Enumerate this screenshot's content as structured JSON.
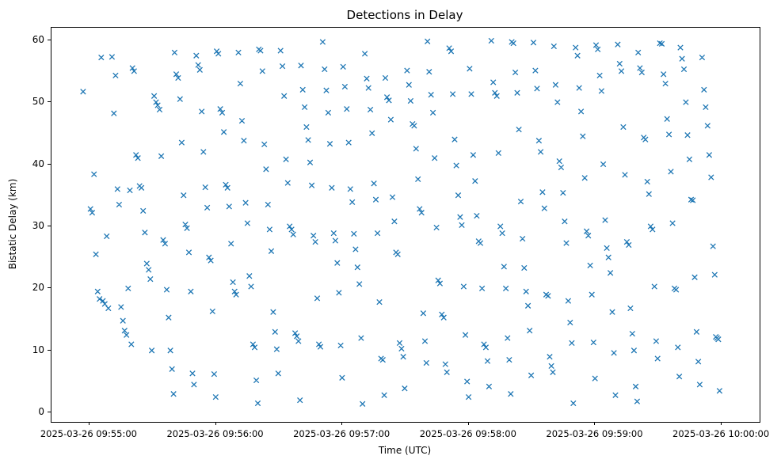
{
  "chart_data": {
    "type": "scatter",
    "title": "Detections in Delay",
    "xlabel": "Time (UTC)",
    "ylabel": "Bistatic Delay (km)",
    "marker": "x",
    "marker_color": "#1f77b4",
    "grid": false,
    "legend": "none",
    "x_axis": {
      "tick_labels": [
        "2025-03-26 09:55:00",
        "2025-03-26 09:56:00",
        "2025-03-26 09:57:00",
        "2025-03-26 09:58:00",
        "2025-03-26 09:59:00",
        "2025-03-26 10:00:00"
      ],
      "tick_seconds": [
        0,
        60,
        120,
        180,
        240,
        300
      ],
      "range_seconds": [
        -18,
        318
      ],
      "unit": "seconds after 2025-03-26 09:55:00 UTC"
    },
    "y_axis": {
      "ticks": [
        0,
        10,
        20,
        30,
        40,
        50,
        60
      ],
      "range": [
        -1.5,
        62
      ]
    },
    "points": [
      [
        -3,
        51.7
      ],
      [
        0.5,
        32.8
      ],
      [
        1.3,
        32.2
      ],
      [
        2.2,
        38.4
      ],
      [
        3.1,
        25.5
      ],
      [
        3.9,
        19.5
      ],
      [
        4.8,
        18.3
      ],
      [
        5.6,
        57.2
      ],
      [
        6.4,
        18.0
      ],
      [
        7.3,
        17.5
      ],
      [
        8.2,
        28.4
      ],
      [
        9.0,
        16.8
      ],
      [
        10.7,
        57.3
      ],
      [
        11.6,
        48.2
      ],
      [
        12.4,
        54.3
      ],
      [
        13.3,
        36.0
      ],
      [
        14.1,
        33.5
      ],
      [
        15.0,
        17.0
      ],
      [
        15.9,
        14.8
      ],
      [
        16.7,
        13.2
      ],
      [
        17.6,
        12.5
      ],
      [
        18.4,
        20.0
      ],
      [
        19.2,
        35.8
      ],
      [
        19.9,
        11.0
      ],
      [
        20.4,
        55.5
      ],
      [
        21.2,
        55.0
      ],
      [
        22.1,
        41.5
      ],
      [
        23.0,
        41.0
      ],
      [
        23.8,
        36.5
      ],
      [
        24.7,
        36.2
      ],
      [
        25.5,
        32.5
      ],
      [
        26.3,
        29.0
      ],
      [
        27.2,
        24.0
      ],
      [
        28.1,
        23.0
      ],
      [
        28.9,
        21.5
      ],
      [
        29.6,
        10.0
      ],
      [
        30.7,
        51.0
      ],
      [
        31.6,
        50.0
      ],
      [
        32.4,
        49.5
      ],
      [
        33.3,
        48.8
      ],
      [
        34.1,
        41.3
      ],
      [
        35.0,
        27.8
      ],
      [
        35.9,
        27.2
      ],
      [
        36.7,
        19.8
      ],
      [
        37.6,
        15.3
      ],
      [
        38.4,
        10.0
      ],
      [
        39.2,
        7.0
      ],
      [
        39.9,
        3.0
      ],
      [
        40.4,
        58.0
      ],
      [
        41.2,
        54.5
      ],
      [
        42.1,
        53.9
      ],
      [
        43.0,
        50.5
      ],
      [
        43.8,
        43.5
      ],
      [
        44.7,
        35.0
      ],
      [
        45.5,
        30.3
      ],
      [
        46.3,
        29.7
      ],
      [
        47.2,
        25.8
      ],
      [
        48.1,
        19.5
      ],
      [
        48.9,
        6.3
      ],
      [
        49.6,
        4.5
      ],
      [
        50.7,
        57.5
      ],
      [
        51.6,
        56.0
      ],
      [
        52.4,
        55.2
      ],
      [
        53.3,
        48.5
      ],
      [
        54.1,
        42.0
      ],
      [
        55.0,
        36.3
      ],
      [
        55.9,
        33.0
      ],
      [
        56.7,
        25.0
      ],
      [
        57.6,
        24.5
      ],
      [
        58.4,
        16.3
      ],
      [
        59.2,
        6.2
      ],
      [
        59.9,
        2.5
      ],
      [
        60.4,
        58.2
      ],
      [
        61.2,
        57.8
      ],
      [
        62.1,
        48.9
      ],
      [
        63.0,
        48.3
      ],
      [
        63.8,
        45.2
      ],
      [
        64.7,
        36.7
      ],
      [
        65.5,
        36.2
      ],
      [
        66.3,
        33.2
      ],
      [
        67.2,
        27.2
      ],
      [
        68.1,
        21.0
      ],
      [
        68.9,
        19.5
      ],
      [
        69.6,
        19.0
      ],
      [
        70.7,
        58.0
      ],
      [
        71.6,
        53.0
      ],
      [
        72.4,
        47.0
      ],
      [
        73.3,
        43.8
      ],
      [
        74.1,
        33.8
      ],
      [
        75.0,
        30.5
      ],
      [
        75.9,
        22.0
      ],
      [
        76.7,
        20.3
      ],
      [
        77.6,
        11.0
      ],
      [
        78.4,
        10.5
      ],
      [
        79.2,
        5.2
      ],
      [
        79.9,
        1.5
      ],
      [
        80.4,
        58.5
      ],
      [
        81.2,
        58.3
      ],
      [
        82.1,
        55.0
      ],
      [
        83.0,
        43.2
      ],
      [
        83.8,
        39.2
      ],
      [
        84.7,
        33.5
      ],
      [
        85.5,
        29.5
      ],
      [
        86.3,
        26.0
      ],
      [
        87.2,
        16.2
      ],
      [
        88.1,
        13.0
      ],
      [
        88.9,
        10.2
      ],
      [
        89.6,
        6.3
      ],
      [
        90.7,
        58.3
      ],
      [
        91.6,
        55.8
      ],
      [
        92.4,
        51.0
      ],
      [
        93.3,
        40.8
      ],
      [
        94.1,
        37.0
      ],
      [
        95.0,
        30.0
      ],
      [
        95.9,
        29.5
      ],
      [
        96.7,
        28.7
      ],
      [
        97.6,
        12.8
      ],
      [
        98.4,
        12.3
      ],
      [
        99.2,
        11.5
      ],
      [
        99.9,
        2.0
      ],
      [
        100.4,
        55.9
      ],
      [
        101.2,
        52.0
      ],
      [
        102.1,
        49.2
      ],
      [
        103.0,
        46.0
      ],
      [
        103.8,
        43.9
      ],
      [
        104.7,
        40.3
      ],
      [
        105.5,
        36.6
      ],
      [
        106.3,
        28.5
      ],
      [
        107.2,
        27.5
      ],
      [
        108.1,
        18.4
      ],
      [
        108.9,
        11.0
      ],
      [
        109.6,
        10.6
      ],
      [
        110.7,
        59.7
      ],
      [
        111.6,
        55.3
      ],
      [
        112.4,
        51.9
      ],
      [
        113.3,
        48.3
      ],
      [
        114.1,
        43.3
      ],
      [
        115.0,
        36.2
      ],
      [
        115.9,
        28.9
      ],
      [
        116.7,
        27.7
      ],
      [
        117.6,
        24.1
      ],
      [
        118.4,
        19.3
      ],
      [
        119.2,
        10.8
      ],
      [
        119.9,
        5.6
      ],
      [
        120.4,
        55.7
      ],
      [
        121.2,
        52.5
      ],
      [
        122.1,
        48.9
      ],
      [
        123.0,
        43.5
      ],
      [
        123.8,
        36.0
      ],
      [
        124.7,
        33.9
      ],
      [
        125.5,
        28.8
      ],
      [
        126.3,
        26.3
      ],
      [
        127.2,
        23.4
      ],
      [
        128.1,
        20.7
      ],
      [
        128.9,
        12.0
      ],
      [
        129.6,
        1.4
      ],
      [
        130.7,
        57.8
      ],
      [
        131.6,
        53.8
      ],
      [
        132.4,
        52.3
      ],
      [
        133.3,
        48.8
      ],
      [
        134.1,
        45.0
      ],
      [
        135.0,
        36.9
      ],
      [
        135.9,
        34.3
      ],
      [
        136.7,
        28.9
      ],
      [
        137.6,
        17.8
      ],
      [
        138.4,
        8.7
      ],
      [
        139.2,
        8.5
      ],
      [
        139.9,
        2.8
      ],
      [
        140.4,
        53.9
      ],
      [
        141.2,
        50.8
      ],
      [
        142.1,
        50.3
      ],
      [
        143.0,
        47.2
      ],
      [
        143.8,
        34.7
      ],
      [
        144.7,
        30.8
      ],
      [
        145.5,
        25.8
      ],
      [
        146.3,
        25.5
      ],
      [
        147.2,
        11.2
      ],
      [
        148.1,
        10.3
      ],
      [
        148.9,
        9.0
      ],
      [
        149.6,
        3.9
      ],
      [
        150.7,
        55.1
      ],
      [
        151.6,
        52.8
      ],
      [
        152.4,
        50.2
      ],
      [
        153.3,
        46.5
      ],
      [
        154.1,
        46.2
      ],
      [
        155.0,
        42.5
      ],
      [
        155.9,
        37.6
      ],
      [
        156.7,
        32.8
      ],
      [
        157.6,
        32.2
      ],
      [
        158.4,
        16.0
      ],
      [
        159.2,
        11.5
      ],
      [
        159.9,
        8.0
      ],
      [
        160.4,
        59.8
      ],
      [
        161.2,
        54.9
      ],
      [
        162.1,
        51.2
      ],
      [
        163.0,
        48.3
      ],
      [
        163.8,
        41.0
      ],
      [
        164.7,
        29.8
      ],
      [
        165.5,
        21.3
      ],
      [
        166.3,
        20.8
      ],
      [
        167.2,
        15.8
      ],
      [
        168.1,
        15.3
      ],
      [
        168.9,
        7.8
      ],
      [
        169.6,
        6.5
      ],
      [
        170.7,
        58.7
      ],
      [
        171.6,
        58.2
      ],
      [
        172.4,
        51.3
      ],
      [
        173.3,
        44.0
      ],
      [
        174.1,
        39.8
      ],
      [
        175.0,
        35.0
      ],
      [
        175.9,
        31.5
      ],
      [
        176.7,
        30.2
      ],
      [
        177.6,
        20.3
      ],
      [
        178.4,
        12.5
      ],
      [
        179.2,
        5.0
      ],
      [
        179.9,
        2.5
      ],
      [
        180.4,
        55.4
      ],
      [
        181.2,
        51.3
      ],
      [
        182.1,
        41.5
      ],
      [
        183.0,
        37.3
      ],
      [
        183.8,
        31.7
      ],
      [
        184.7,
        27.6
      ],
      [
        185.5,
        27.3
      ],
      [
        186.3,
        20.0
      ],
      [
        187.2,
        11.0
      ],
      [
        188.1,
        10.5
      ],
      [
        188.9,
        8.3
      ],
      [
        189.6,
        4.2
      ],
      [
        190.7,
        59.9
      ],
      [
        191.6,
        53.2
      ],
      [
        192.4,
        51.5
      ],
      [
        193.3,
        51.0
      ],
      [
        194.1,
        41.8
      ],
      [
        195.0,
        30.0
      ],
      [
        195.9,
        28.9
      ],
      [
        196.7,
        23.5
      ],
      [
        197.6,
        20.0
      ],
      [
        198.4,
        12.0
      ],
      [
        199.2,
        8.5
      ],
      [
        199.9,
        3.0
      ],
      [
        200.4,
        59.7
      ],
      [
        201.2,
        59.5
      ],
      [
        202.1,
        54.8
      ],
      [
        203.0,
        51.5
      ],
      [
        203.8,
        45.6
      ],
      [
        204.7,
        34.0
      ],
      [
        205.5,
        28.0
      ],
      [
        206.3,
        23.3
      ],
      [
        207.2,
        19.5
      ],
      [
        208.1,
        17.2
      ],
      [
        208.9,
        13.2
      ],
      [
        209.6,
        6.0
      ],
      [
        210.7,
        59.6
      ],
      [
        211.6,
        55.1
      ],
      [
        212.4,
        52.2
      ],
      [
        213.3,
        43.8
      ],
      [
        214.1,
        42.0
      ],
      [
        215.0,
        35.5
      ],
      [
        215.9,
        32.9
      ],
      [
        216.7,
        19.0
      ],
      [
        217.6,
        18.8
      ],
      [
        218.4,
        9.0
      ],
      [
        219.2,
        7.5
      ],
      [
        219.9,
        6.5
      ],
      [
        220.4,
        59.0
      ],
      [
        221.2,
        52.8
      ],
      [
        222.1,
        50.0
      ],
      [
        223.0,
        40.5
      ],
      [
        223.8,
        39.5
      ],
      [
        224.7,
        35.4
      ],
      [
        225.5,
        30.8
      ],
      [
        226.3,
        27.3
      ],
      [
        227.2,
        18.0
      ],
      [
        228.1,
        14.5
      ],
      [
        228.9,
        11.2
      ],
      [
        229.6,
        1.5
      ],
      [
        230.7,
        58.8
      ],
      [
        231.6,
        57.5
      ],
      [
        232.4,
        52.3
      ],
      [
        233.3,
        48.5
      ],
      [
        234.1,
        44.5
      ],
      [
        235.0,
        37.8
      ],
      [
        235.9,
        29.2
      ],
      [
        236.7,
        28.5
      ],
      [
        237.6,
        23.7
      ],
      [
        238.4,
        19.0
      ],
      [
        239.2,
        11.3
      ],
      [
        239.9,
        5.5
      ],
      [
        240.4,
        59.2
      ],
      [
        241.2,
        58.5
      ],
      [
        242.1,
        54.3
      ],
      [
        243.0,
        51.8
      ],
      [
        243.8,
        40.0
      ],
      [
        244.7,
        31.0
      ],
      [
        245.5,
        26.5
      ],
      [
        246.3,
        25.0
      ],
      [
        247.2,
        22.5
      ],
      [
        248.1,
        16.2
      ],
      [
        248.9,
        9.6
      ],
      [
        249.6,
        2.8
      ],
      [
        250.7,
        59.3
      ],
      [
        251.6,
        56.2
      ],
      [
        252.4,
        55.0
      ],
      [
        253.3,
        46.0
      ],
      [
        254.1,
        38.3
      ],
      [
        255.0,
        27.5
      ],
      [
        255.9,
        27.0
      ],
      [
        256.7,
        16.8
      ],
      [
        257.6,
        12.7
      ],
      [
        258.4,
        10.0
      ],
      [
        259.2,
        4.2
      ],
      [
        259.9,
        1.8
      ],
      [
        260.4,
        58.0
      ],
      [
        261.2,
        55.5
      ],
      [
        262.1,
        54.8
      ],
      [
        263.0,
        44.3
      ],
      [
        263.8,
        44.0
      ],
      [
        264.7,
        37.2
      ],
      [
        265.5,
        35.2
      ],
      [
        266.3,
        30.0
      ],
      [
        267.2,
        29.5
      ],
      [
        268.1,
        20.3
      ],
      [
        268.9,
        11.5
      ],
      [
        269.6,
        8.7
      ],
      [
        270.7,
        59.5
      ],
      [
        271.6,
        59.4
      ],
      [
        272.4,
        54.5
      ],
      [
        273.3,
        53.0
      ],
      [
        274.1,
        47.3
      ],
      [
        275.0,
        44.8
      ],
      [
        275.9,
        38.8
      ],
      [
        276.7,
        30.5
      ],
      [
        277.6,
        20.0
      ],
      [
        278.4,
        19.8
      ],
      [
        279.2,
        10.5
      ],
      [
        279.9,
        5.8
      ],
      [
        280.4,
        58.8
      ],
      [
        281.2,
        57.0
      ],
      [
        282.1,
        55.3
      ],
      [
        283.0,
        50.0
      ],
      [
        283.8,
        44.7
      ],
      [
        284.7,
        40.8
      ],
      [
        285.5,
        34.3
      ],
      [
        286.3,
        34.2
      ],
      [
        287.2,
        21.8
      ],
      [
        288.1,
        13.0
      ],
      [
        288.9,
        8.2
      ],
      [
        289.6,
        4.5
      ],
      [
        290.7,
        57.2
      ],
      [
        291.6,
        52.0
      ],
      [
        292.4,
        49.2
      ],
      [
        293.3,
        46.2
      ],
      [
        294.1,
        41.5
      ],
      [
        295.0,
        37.9
      ],
      [
        295.9,
        26.8
      ],
      [
        296.7,
        22.2
      ],
      [
        297.2,
        12.2
      ],
      [
        297.8,
        12.0
      ],
      [
        298.4,
        11.8
      ],
      [
        299.0,
        3.5
      ]
    ]
  }
}
